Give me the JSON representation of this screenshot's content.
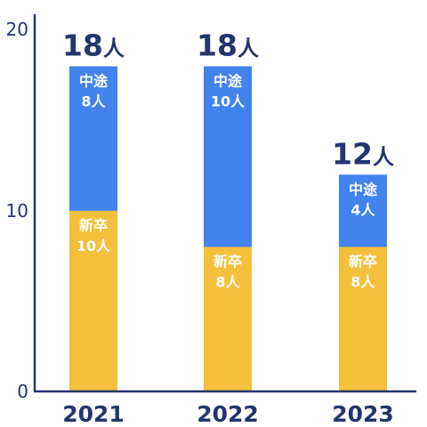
{
  "chart_data": {
    "type": "bar",
    "stacked": true,
    "categories": [
      "2021",
      "2022",
      "2023"
    ],
    "series": [
      {
        "key": "shinsotsu",
        "label": "新卒",
        "color": "#f4bf3a",
        "values": [
          10,
          8,
          8
        ]
      },
      {
        "key": "chuto",
        "label": "中途",
        "color": "#4283ee",
        "values": [
          8,
          10,
          4
        ]
      }
    ],
    "totals": [
      18,
      18,
      12
    ],
    "unit": "人",
    "yticks": [
      0,
      10,
      20
    ],
    "ylim": [
      0,
      20
    ],
    "axis_color": "#24356e",
    "grid": false,
    "legend": "none"
  }
}
